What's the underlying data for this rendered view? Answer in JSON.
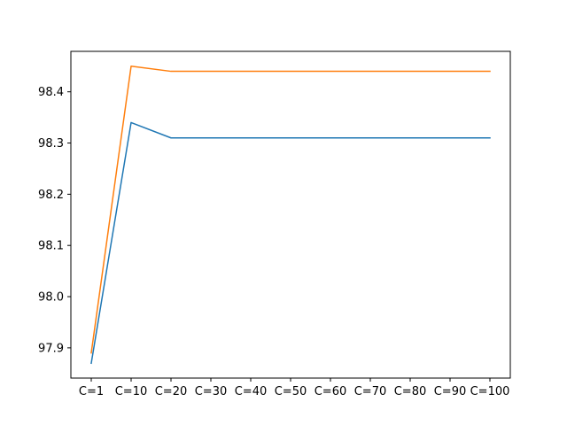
{
  "chart_data": {
    "type": "line",
    "categories": [
      "C=1",
      "C=10",
      "C=20",
      "C=30",
      "C=40",
      "C=50",
      "C=60",
      "C=70",
      "C=80",
      "C=90",
      "C=100"
    ],
    "series": [
      {
        "color": "#1f77b4",
        "values": [
          97.87,
          98.34,
          98.31,
          98.31,
          98.31,
          98.31,
          98.31,
          98.31,
          98.31,
          98.31,
          98.31
        ]
      },
      {
        "color": "#ff7f0e",
        "values": [
          97.89,
          98.45,
          98.44,
          98.44,
          98.44,
          98.44,
          98.44,
          98.44,
          98.44,
          98.44,
          98.44
        ]
      }
    ],
    "yticks": [
      97.9,
      98.0,
      98.1,
      98.2,
      98.3,
      98.4
    ],
    "ytick_labels": [
      "97.9",
      "98.0",
      "98.1",
      "98.2",
      "98.3",
      "98.4"
    ],
    "ylim": [
      97.841,
      98.479
    ],
    "title": "",
    "xlabel": "",
    "ylabel": "",
    "grid": false,
    "legend": "none"
  }
}
